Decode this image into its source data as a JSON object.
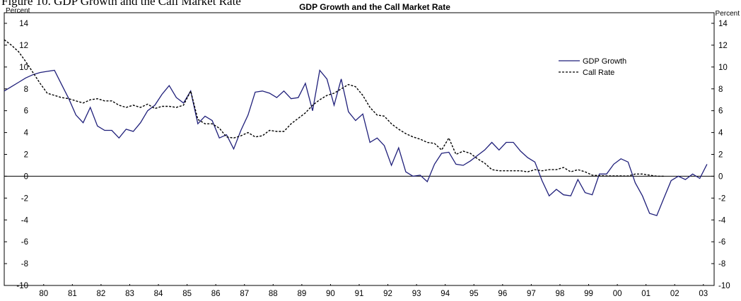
{
  "chart_data": {
    "type": "line",
    "caption": "Figure 10. GDP Growth and the Call Market Rate",
    "title": "GDP Growth and the Call Market Rate",
    "y_label": "Percent",
    "y2_label": "Percent",
    "legend": "upper right",
    "xlim": [
      1979.125,
      2003.875
    ],
    "xticks": [
      {
        "value": 1980.5,
        "label": "80"
      },
      {
        "value": 1981.5,
        "label": "81"
      },
      {
        "value": 1982.5,
        "label": "82"
      },
      {
        "value": 1983.5,
        "label": "83"
      },
      {
        "value": 1984.5,
        "label": "84"
      },
      {
        "value": 1985.5,
        "label": "85"
      },
      {
        "value": 1986.5,
        "label": "86"
      },
      {
        "value": 1987.5,
        "label": "87"
      },
      {
        "value": 1988.5,
        "label": "88"
      },
      {
        "value": 1989.5,
        "label": "89"
      },
      {
        "value": 1990.5,
        "label": "90"
      },
      {
        "value": 1991.5,
        "label": "91"
      },
      {
        "value": 1992.5,
        "label": "92"
      },
      {
        "value": 1993.5,
        "label": "93"
      },
      {
        "value": 1994.5,
        "label": "94"
      },
      {
        "value": 1995.5,
        "label": "95"
      },
      {
        "value": 1996.5,
        "label": "96"
      },
      {
        "value": 1997.5,
        "label": "97"
      },
      {
        "value": 1998.5,
        "label": "98"
      },
      {
        "value": 1999.5,
        "label": "99"
      },
      {
        "value": 2000.5,
        "label": "00"
      },
      {
        "value": 2001.5,
        "label": "01"
      },
      {
        "value": 2002.5,
        "label": "02"
      },
      {
        "value": 2003.5,
        "label": "03"
      }
    ],
    "ylim": [
      -10,
      14
    ],
    "yticks": [
      -10,
      -8,
      -6,
      -4,
      -2,
      0,
      2,
      4,
      6,
      8,
      10,
      12,
      14
    ],
    "y2lim": [
      -10,
      14
    ],
    "y2ticks": [
      -10,
      -8,
      -6,
      -4,
      -2,
      0,
      2,
      4,
      6,
      8,
      10,
      12,
      14
    ],
    "x": [
      1979.125,
      1979.375,
      1979.625,
      1979.875,
      1980.125,
      1980.375,
      1980.625,
      1980.875,
      1981.125,
      1981.375,
      1981.625,
      1981.875,
      1982.125,
      1982.375,
      1982.625,
      1982.875,
      1983.125,
      1983.375,
      1983.625,
      1983.875,
      1984.125,
      1984.375,
      1984.625,
      1984.875,
      1985.125,
      1985.375,
      1985.625,
      1985.875,
      1986.125,
      1986.375,
      1986.625,
      1986.875,
      1987.125,
      1987.375,
      1987.625,
      1987.875,
      1988.125,
      1988.375,
      1988.625,
      1988.875,
      1989.125,
      1989.375,
      1989.625,
      1989.875,
      1990.125,
      1990.375,
      1990.625,
      1990.875,
      1991.125,
      1991.375,
      1991.625,
      1991.875,
      1992.125,
      1992.375,
      1992.625,
      1992.875,
      1993.125,
      1993.375,
      1993.625,
      1993.875,
      1994.125,
      1994.375,
      1994.625,
      1994.875,
      1995.125,
      1995.375,
      1995.625,
      1995.875,
      1996.125,
      1996.375,
      1996.625,
      1996.875,
      1997.125,
      1997.375,
      1997.625,
      1997.875,
      1998.125,
      1998.375,
      1998.625,
      1998.875,
      1999.125,
      1999.375,
      1999.625,
      1999.875,
      2000.125,
      2000.375,
      2000.625,
      2000.875,
      2001.125,
      2001.375,
      2001.625,
      2001.875,
      2002.125,
      2002.375,
      2002.625,
      2002.875,
      2003.125,
      2003.375,
      2003.625
    ],
    "series": [
      {
        "name": "GDP Growth",
        "color": "#1f1f7a",
        "dash": "solid",
        "values": [
          7.8,
          8.2,
          8.6,
          9.0,
          9.3,
          9.5,
          9.6,
          9.7,
          8.4,
          7.1,
          5.6,
          4.9,
          6.3,
          4.6,
          4.2,
          4.2,
          3.5,
          4.3,
          4.1,
          4.9,
          6.0,
          6.5,
          7.5,
          8.3,
          7.2,
          6.7,
          7.8,
          4.8,
          5.5,
          5.1,
          3.5,
          3.8,
          2.5,
          4.2,
          5.6,
          7.7,
          7.8,
          7.6,
          7.2,
          7.8,
          7.1,
          7.2,
          8.5,
          6.0,
          9.7,
          8.9,
          6.5,
          8.9,
          5.9,
          5.1,
          5.7,
          3.1,
          3.5,
          2.8,
          1.0,
          2.6,
          0.4,
          0.0,
          0.1,
          -0.5,
          1.1,
          2.1,
          2.2,
          1.1,
          1.0,
          1.4,
          1.9,
          2.4,
          3.1,
          2.4,
          3.1,
          3.1,
          2.3,
          1.7,
          1.3,
          -0.4,
          -1.8,
          -1.2,
          -1.7,
          -1.8,
          -0.3,
          -1.5,
          -1.7,
          0.2,
          0.2,
          1.1,
          1.6,
          1.3,
          -0.6,
          -1.8,
          -3.4,
          -3.6,
          -2.0,
          -0.4,
          0.0,
          -0.3,
          0.2,
          -0.2,
          1.1
        ]
      },
      {
        "name": "Call Rate",
        "color": "#000000",
        "dash": "dashed",
        "values": [
          12.5,
          12.0,
          11.4,
          10.5,
          9.5,
          8.5,
          7.6,
          7.4,
          7.2,
          7.1,
          6.9,
          6.7,
          7.0,
          7.1,
          6.9,
          6.9,
          6.5,
          6.3,
          6.5,
          6.3,
          6.6,
          6.2,
          6.4,
          6.4,
          6.3,
          6.5,
          7.8,
          5.2,
          4.8,
          4.8,
          4.4,
          3.6,
          3.5,
          3.7,
          4.0,
          3.6,
          3.7,
          4.2,
          4.1,
          4.1,
          4.8,
          5.3,
          5.8,
          6.5,
          7.0,
          7.4,
          7.6,
          8.0,
          8.4,
          8.2,
          7.4,
          6.3,
          5.6,
          5.5,
          4.8,
          4.3,
          3.9,
          3.6,
          3.4,
          3.1,
          3.0,
          2.4,
          3.5,
          2.0,
          2.3,
          2.1,
          1.6,
          1.2,
          0.6,
          0.5,
          0.5,
          0.5,
          0.5,
          0.4,
          0.6,
          0.5,
          0.6,
          0.6,
          0.8,
          0.4,
          0.6,
          0.4,
          0.1,
          0.05,
          0.03,
          0.03,
          0.03,
          0.02,
          0.2,
          0.2,
          0.1,
          0.0,
          0.0,
          null,
          null,
          null,
          null,
          null,
          null
        ]
      }
    ]
  }
}
